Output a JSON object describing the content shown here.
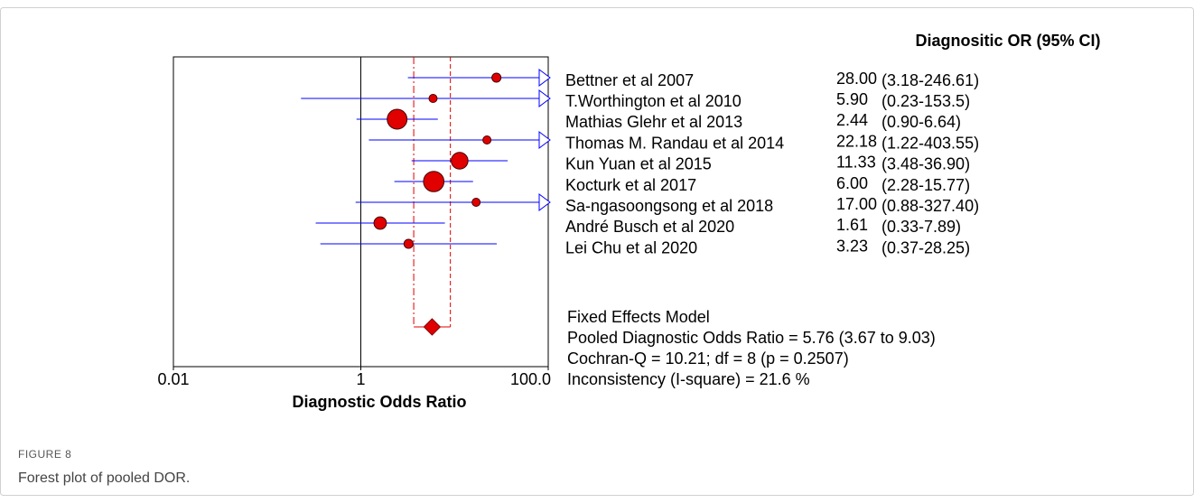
{
  "chart_data": {
    "type": "forest",
    "column_header": "Diagnositic OR (95% CI)",
    "xlabel": "Diagnostic Odds Ratio",
    "log_x": true,
    "xlim": [
      0.01,
      100
    ],
    "xticks": [
      0.01,
      1,
      {
        "value": 100,
        "label": "100.0"
      }
    ],
    "categories": [
      "Bettner et al 2007",
      "T.Worthington et al 2010",
      "Mathias Glehr et al 2013",
      "Thomas M. Randau et al 2014",
      "Kun Yuan et al 2015",
      "Kocturk et al 2017",
      "Sa-ngasoongsong et al 2018",
      "André Busch et al 2020",
      "Lei Chu et al 2020"
    ],
    "values": [
      28,
      5.9,
      2.44,
      22.18,
      11.33,
      6,
      17,
      1.61,
      3.23
    ],
    "value_labels": [
      "28.00",
      "5.90",
      "2.44",
      "22.18",
      "11.33",
      "6.00",
      "17.00",
      "1.61",
      "3.23"
    ],
    "ci_low": [
      3.18,
      0.23,
      0.9,
      1.22,
      3.48,
      2.28,
      0.88,
      0.33,
      0.37
    ],
    "ci_high": [
      246.61,
      153.5,
      6.64,
      403.55,
      36.9,
      15.77,
      327.4,
      7.89,
      28.25
    ],
    "ci_labels": [
      "(3.18-246.61)",
      "(0.23-153.5)",
      "(0.90-6.64)",
      "(1.22-403.55)",
      "(3.48-36.90)",
      "(2.28-15.77)",
      "(0.88-327.40)",
      "(0.33-7.89)",
      "(0.37-28.25)"
    ],
    "marker_color": "#e00000",
    "ci_color": "#0000ff",
    "pooled": {
      "value": 5.76,
      "low": 3.67,
      "high": 9.03,
      "color": "#e00000"
    },
    "summary_lines": [
      "Fixed Effects Model",
      "Pooled Diagnostic Odds Ratio = 5.76 (3.67 to 9.03)",
      "Cochran-Q = 10.21; df =  8 (p = 0.2507)",
      "Inconsistency (I-square) = 21.6 %"
    ]
  },
  "caption": {
    "label": "FIGURE 8",
    "text": "Forest plot of pooled DOR."
  }
}
